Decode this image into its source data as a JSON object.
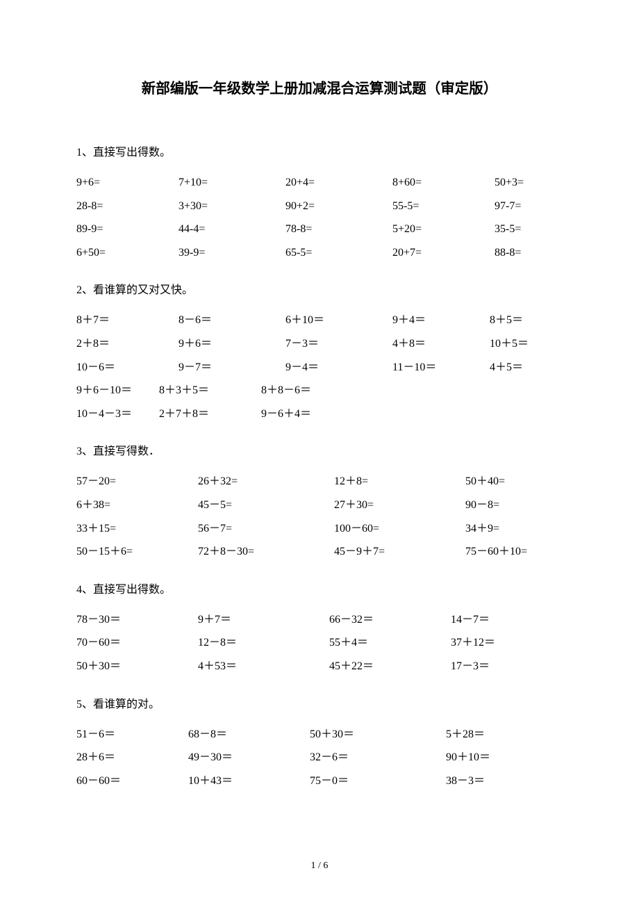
{
  "title": "新部编版一年级数学上册加减混合运算测试题（审定版）",
  "page_number": "1 / 6",
  "sections": [
    {
      "header": "1、直接写出得数。",
      "layout": "row5",
      "rows": [
        [
          "9+6=",
          "7+10=",
          "20+4=",
          "8+60=",
          "50+3="
        ],
        [
          "28-8=",
          "3+30=",
          "90+2=",
          "55-5=",
          "97-7="
        ],
        [
          "89-9=",
          "44-4=",
          "78-8=",
          "5+20=",
          "35-5="
        ],
        [
          "6+50=",
          "39-9=",
          "65-5=",
          "20+7=",
          "88-8="
        ]
      ]
    },
    {
      "header": "2、看谁算的又对又快。",
      "layout": "row5b",
      "rows": [
        [
          "8＋7＝",
          "8－6＝",
          "6＋10＝",
          "9＋4＝",
          "8＋5＝"
        ],
        [
          "2＋8＝",
          "9＋6＝",
          "7－3＝",
          "4＋8＝",
          "10＋5＝"
        ],
        [
          "10－6＝",
          "9－7＝",
          "9－4＝",
          "11－10＝",
          "4＋5＝"
        ]
      ],
      "rows2_layout": "row3",
      "rows2": [
        [
          "9＋6－10＝",
          "8＋3＋5＝",
          "8＋8－6＝"
        ],
        [
          "10－4－3＝",
          "2＋7＋8＝",
          "9－6＋4＝"
        ]
      ]
    },
    {
      "header": "3、直接写得数．",
      "layout": "row4",
      "rows": [
        [
          "57－20=",
          "26＋32=",
          "12＋8=",
          "50＋40="
        ],
        [
          "6＋38=",
          "45－5=",
          "27＋30=",
          "90－8="
        ],
        [
          "33＋15=",
          "56－7=",
          "100－60=",
          "34＋9="
        ],
        [
          "50－15＋6=",
          "72＋8－30=",
          "45－9＋7=",
          "75－60＋10="
        ]
      ]
    },
    {
      "header": "4、直接写出得数。",
      "layout": "row4b",
      "rows": [
        [
          "78－30＝",
          "9＋7＝",
          "66－32＝",
          "14－7＝"
        ],
        [
          "70－60＝",
          "12－8＝",
          "55＋4＝",
          "37＋12＝"
        ],
        [
          "50＋30＝",
          "4＋53＝",
          "45＋22＝",
          "17－3＝"
        ]
      ]
    },
    {
      "header": "5、看谁算的对。",
      "layout": "row4c",
      "rows": [
        [
          "51－6＝",
          "68－8＝",
          "50＋30＝",
          "5＋28＝"
        ],
        [
          "28＋6＝",
          "49－30＝",
          "32－6＝",
          "90＋10＝"
        ],
        [
          "60－60＝",
          "10＋43＝",
          "75－0＝",
          "38－3＝"
        ]
      ]
    }
  ]
}
